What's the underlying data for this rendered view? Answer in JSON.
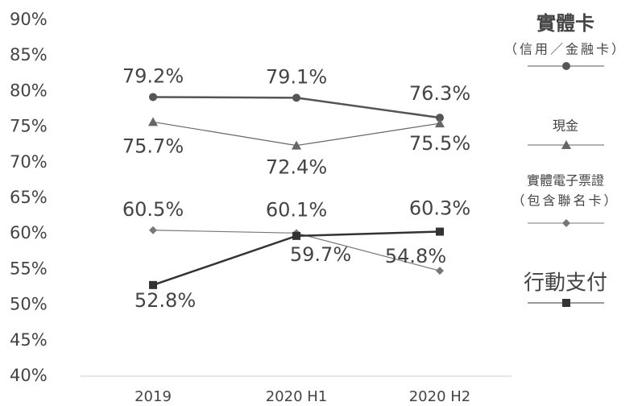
{
  "chart_data": {
    "type": "line",
    "categories": [
      "2019",
      "2020 H1",
      "2020 H2"
    ],
    "ylim": [
      40,
      90
    ],
    "yticks": [
      {
        "value": 40,
        "label": "40%"
      },
      {
        "value": 45,
        "label": "45%"
      },
      {
        "value": 50,
        "label": "50%"
      },
      {
        "value": 55,
        "label": "55%"
      },
      {
        "value": 60,
        "label": "60%"
      },
      {
        "value": 65,
        "label": "65%"
      },
      {
        "value": 70,
        "label": "70%"
      },
      {
        "value": 75,
        "label": "75%"
      },
      {
        "value": 80,
        "label": "80%"
      },
      {
        "value": 85,
        "label": "85%"
      },
      {
        "value": 90,
        "label": "90%"
      }
    ],
    "grid": false,
    "legend": "right",
    "series": [
      {
        "name": "實體卡",
        "note": "（信用／金融卡）",
        "marker": "circle",
        "color": "#555555",
        "values": [
          79.2,
          79.1,
          76.3
        ],
        "value_labels": [
          "79.2%",
          "79.1%",
          "76.3%"
        ]
      },
      {
        "name": "現金",
        "marker": "triangle",
        "color": "#666666",
        "values": [
          75.7,
          72.4,
          75.5
        ],
        "value_labels": [
          "75.7%",
          "72.4%",
          "75.5%"
        ]
      },
      {
        "name": "實體電子票證",
        "note": "（包含聯名卡）",
        "marker": "diamond",
        "color": "#777777",
        "values": [
          60.5,
          60.1,
          54.8
        ],
        "value_labels": [
          "60.5%",
          "60.1%",
          "54.8%"
        ]
      },
      {
        "name": "行動支付",
        "marker": "square",
        "color": "#333333",
        "values": [
          52.8,
          59.7,
          60.3
        ],
        "value_labels": [
          "52.8%",
          "59.7%",
          "60.3%"
        ]
      }
    ]
  }
}
